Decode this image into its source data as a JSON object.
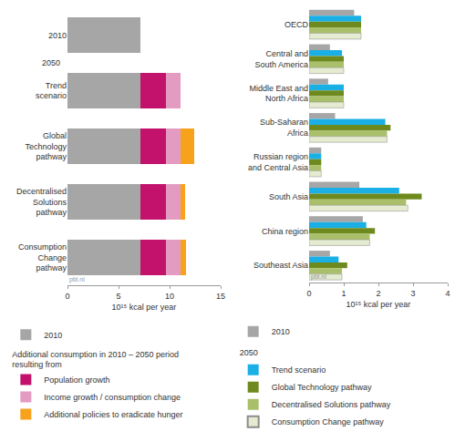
{
  "chart_data": [
    {
      "type": "bar",
      "orientation": "horizontal",
      "stacked": true,
      "grid": false,
      "legend": "bottom",
      "categories": [
        "2010",
        "Trend\nscenario",
        "Global\nTechnology\npathway",
        "Decentralised\nSolutions\npathway",
        "Consumption\nChange\npathway"
      ],
      "annotations": [
        {
          "text": "2050",
          "before": "Trend\nscenario"
        }
      ],
      "xlabel": "10¹⁵ kcal per year",
      "xlim": [
        0,
        15
      ],
      "xticks": [
        0,
        5,
        10,
        15
      ],
      "source": "pbl.nl",
      "legend_title": "Additional consumption in 2010 – 2050 period\nresulting from",
      "series": [
        {
          "name": "2010",
          "color": "#a6a6a6",
          "values": [
            7.1,
            7.1,
            7.1,
            7.1,
            7.1
          ]
        },
        {
          "name": "Population growth",
          "color": "#c2126b",
          "values": [
            null,
            2.5,
            2.5,
            2.5,
            2.5
          ]
        },
        {
          "name": "Income growth / consumption change",
          "color": "#e39bc2",
          "values": [
            null,
            1.5,
            1.5,
            1.5,
            1.5
          ]
        },
        {
          "name": "Additional policies to eradicate hunger",
          "color": "#f7a21b",
          "values": [
            null,
            null,
            1.3,
            0.4,
            0.5
          ]
        }
      ]
    },
    {
      "type": "bar",
      "orientation": "horizontal",
      "stacked": false,
      "grid": false,
      "legend": "bottom",
      "categories": [
        "OECD",
        "Central and\nSouth America",
        "Middle East and\nNorth Africa",
        "Sub-Saharan\nAfrica",
        "Russian region\nand Central Asia",
        "South Asia",
        "China region",
        "Southeast Asia"
      ],
      "xlabel": "10¹⁵ kcal per year",
      "xlim": [
        0,
        4
      ],
      "xticks": [
        0,
        1,
        2,
        3,
        4
      ],
      "source": "pbl.nl",
      "legend_title": "2050",
      "series": [
        {
          "name": "2010",
          "color": "#a6a6a6",
          "values": [
            1.3,
            0.6,
            0.55,
            0.75,
            0.35,
            1.45,
            1.55,
            0.6
          ]
        },
        {
          "name": "Trend scenario",
          "color": "#1ab0e6",
          "values": [
            1.5,
            0.95,
            1.0,
            2.2,
            0.35,
            2.6,
            1.65,
            0.85
          ]
        },
        {
          "name": "Global Technology pathway",
          "color": "#6e8a1e",
          "values": [
            1.5,
            1.0,
            1.0,
            2.35,
            0.35,
            3.25,
            1.9,
            1.1
          ]
        },
        {
          "name": "Decentralised Solutions pathway",
          "color": "#a9bf6a",
          "values": [
            1.5,
            1.0,
            1.0,
            2.25,
            0.35,
            2.8,
            1.75,
            0.95
          ]
        },
        {
          "name": "Consumption Change pathway",
          "color": "#e4ebd0",
          "values": [
            1.5,
            1.0,
            1.0,
            2.25,
            0.35,
            2.85,
            1.75,
            0.95
          ]
        }
      ]
    }
  ]
}
